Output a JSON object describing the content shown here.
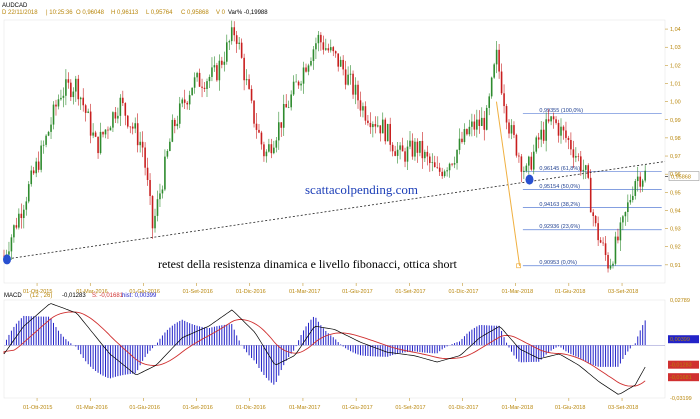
{
  "header": {
    "symbol": "AUDCAD",
    "quote_line": "D 22/11/2018 | 10:25:36 | O 0,96048 | H 0,96113 | L 0,95764 | C 0,95868 | V 0 | Var% -0,19988",
    "quote_parts": [
      {
        "text": "D 22/11/2018",
        "color": "#b8860b"
      },
      {
        "text": "| 10:25:36",
        "color": "#b8860b"
      },
      {
        "text": "O 0,96048",
        "color": "#b8860b"
      },
      {
        "text": "H 0,96113",
        "color": "#b8860b"
      },
      {
        "text": "L 0,95764",
        "color": "#b8860b"
      },
      {
        "text": "C 0,95868",
        "color": "#b8860b"
      },
      {
        "text": "V 0",
        "color": "#b8860b"
      },
      {
        "text": "Var% -0,19988",
        "color": "#000000"
      }
    ]
  },
  "watermark": "scattacolpending.com",
  "annotation": "retest della resistenza dinamica e livello fibonacci, ottica short",
  "colors": {
    "bull_candle": "#2e8b2e",
    "bear_candle": "#c81e1e",
    "trendline": "#222222",
    "fib_line": "#5b7fd6",
    "swing_line": "#f0b040",
    "axis_text": "#b8860b",
    "macd_line": "#000000",
    "signal_line": "#d03030",
    "histogram": "#2323c8",
    "marker": "#2850d0",
    "price_label_bg": "#ffffff"
  },
  "chart_data": [
    {
      "type": "candlestick",
      "title": "AUDCAD",
      "ylim": [
        0.9,
        1.045
      ],
      "y_ticks": [
        "1,04",
        "1,03",
        "1,02",
        "1,01",
        "1,00",
        "0,99",
        "0,98",
        "0,97",
        "0,96",
        "0,95",
        "0,94",
        "0,93",
        "0,92",
        "0,91"
      ],
      "y_tick_values": [
        1.04,
        1.03,
        1.02,
        1.01,
        1.0,
        0.99,
        0.98,
        0.97,
        0.96,
        0.95,
        0.94,
        0.93,
        0.92,
        0.91
      ],
      "x_ticks": [
        "01-Ott-2015",
        "01-Mar-2016",
        "01-Giu-2016",
        "01-Set-2016",
        "01-Dic-2016",
        "01-Mar-2017",
        "01-Giu-2017",
        "01-Set-2017",
        "01-Dic-2017",
        "01-Mar-2018",
        "01-Giu-2018",
        "03-Set-2018"
      ],
      "current_price_label": "0,95868",
      "last_close": 0.95868,
      "price_path": [
        {
          "t": 0.0,
          "p": 0.915
        },
        {
          "t": 0.03,
          "p": 0.945
        },
        {
          "t": 0.06,
          "p": 0.975
        },
        {
          "t": 0.085,
          "p": 1.005
        },
        {
          "t": 0.11,
          "p": 1.01
        },
        {
          "t": 0.14,
          "p": 0.975
        },
        {
          "t": 0.175,
          "p": 1.0
        },
        {
          "t": 0.21,
          "p": 0.975
        },
        {
          "t": 0.225,
          "p": 0.93
        },
        {
          "t": 0.255,
          "p": 0.985
        },
        {
          "t": 0.285,
          "p": 1.01
        },
        {
          "t": 0.32,
          "p": 1.015
        },
        {
          "t": 0.35,
          "p": 1.04
        },
        {
          "t": 0.375,
          "p": 0.995
        },
        {
          "t": 0.395,
          "p": 0.97
        },
        {
          "t": 0.42,
          "p": 0.99
        },
        {
          "t": 0.455,
          "p": 1.02
        },
        {
          "t": 0.475,
          "p": 1.035
        },
        {
          "t": 0.51,
          "p": 1.02
        },
        {
          "t": 0.545,
          "p": 0.995
        },
        {
          "t": 0.575,
          "p": 0.985
        },
        {
          "t": 0.6,
          "p": 0.97
        },
        {
          "t": 0.625,
          "p": 0.975
        },
        {
          "t": 0.655,
          "p": 0.96
        },
        {
          "t": 0.68,
          "p": 0.97
        },
        {
          "t": 0.705,
          "p": 0.985
        },
        {
          "t": 0.73,
          "p": 0.99
        },
        {
          "t": 0.745,
          "p": 1.025
        },
        {
          "t": 0.765,
          "p": 0.985
        },
        {
          "t": 0.79,
          "p": 0.96
        },
        {
          "t": 0.81,
          "p": 0.98
        },
        {
          "t": 0.83,
          "p": 0.99
        },
        {
          "t": 0.86,
          "p": 0.975
        },
        {
          "t": 0.88,
          "p": 0.96
        },
        {
          "t": 0.895,
          "p": 0.93
        },
        {
          "t": 0.915,
          "p": 0.91
        },
        {
          "t": 0.935,
          "p": 0.93
        },
        {
          "t": 0.955,
          "p": 0.958
        },
        {
          "t": 0.97,
          "p": 0.96
        }
      ],
      "trendline": {
        "from": {
          "t": 0.0,
          "p": 0.913
        },
        "to": {
          "t": 1.0,
          "p": 0.967
        }
      },
      "markers": [
        {
          "t": 0.0,
          "p": 0.913
        },
        {
          "t": 0.795,
          "p": 0.957
        }
      ],
      "swing_line": {
        "from": {
          "t": 0.745,
          "p": 1.0
        },
        "to": {
          "t": 0.78,
          "p": 0.9095
        }
      },
      "fibonacci": [
        {
          "label": "0,99355 (100,0%)",
          "value": 0.99355
        },
        {
          "label": "0,96145 (61,8%)",
          "value": 0.96145
        },
        {
          "label": "0,95154 (50,0%)",
          "value": 0.95154
        },
        {
          "label": "0,94163 (38,2%)",
          "value": 0.94163
        },
        {
          "label": "0,92936 (23,6%)",
          "value": 0.92936
        },
        {
          "label": "0,90953 (0,0%)",
          "value": 0.90953
        }
      ]
    },
    {
      "type": "macd",
      "title": "MACD",
      "params": "(12 , 26)",
      "legend": [
        {
          "label": "-0,01283",
          "color": "#000000"
        },
        {
          "label": "S: -0,01681",
          "color": "#d03030"
        },
        {
          "label": "hist: 0,00399",
          "color": "#2323c8"
        }
      ],
      "y_ticks": [
        "0,02789",
        "0,00399",
        "-0,01283",
        "-0,01681",
        "-0,03199"
      ],
      "y_tick_values": [
        0.02789,
        0.00399,
        -0.01283,
        -0.01681,
        -0.03199
      ],
      "ylim": [
        -0.032,
        0.028
      ],
      "x_ticks": [
        "01-Ott-2015",
        "01-Mar-2016",
        "01-Giu-2016",
        "01-Set-2016",
        "01-Dic-2016",
        "01-Mar-2017",
        "01-Giu-2017",
        "01-Set-2017",
        "01-Dic-2017",
        "01-Mar-2018",
        "01-Giu-2018",
        "03-Set-2018"
      ],
      "macd_path": [
        {
          "t": 0.0,
          "v": -0.005
        },
        {
          "t": 0.03,
          "v": 0.012
        },
        {
          "t": 0.07,
          "v": 0.026
        },
        {
          "t": 0.11,
          "v": 0.02
        },
        {
          "t": 0.16,
          "v": -0.005
        },
        {
          "t": 0.2,
          "v": -0.018
        },
        {
          "t": 0.23,
          "v": -0.012
        },
        {
          "t": 0.27,
          "v": 0.005
        },
        {
          "t": 0.31,
          "v": 0.012
        },
        {
          "t": 0.345,
          "v": 0.022
        },
        {
          "t": 0.38,
          "v": 0.008
        },
        {
          "t": 0.41,
          "v": -0.012
        },
        {
          "t": 0.44,
          "v": -0.006
        },
        {
          "t": 0.47,
          "v": 0.012
        },
        {
          "t": 0.5,
          "v": 0.01
        },
        {
          "t": 0.54,
          "v": 0.002
        },
        {
          "t": 0.58,
          "v": -0.004
        },
        {
          "t": 0.62,
          "v": -0.006
        },
        {
          "t": 0.655,
          "v": -0.01
        },
        {
          "t": 0.69,
          "v": -0.006
        },
        {
          "t": 0.72,
          "v": 0.005
        },
        {
          "t": 0.75,
          "v": 0.012
        },
        {
          "t": 0.78,
          "v": -0.002
        },
        {
          "t": 0.81,
          "v": -0.008
        },
        {
          "t": 0.84,
          "v": -0.005
        },
        {
          "t": 0.87,
          "v": -0.012
        },
        {
          "t": 0.9,
          "v": -0.022
        },
        {
          "t": 0.93,
          "v": -0.03
        },
        {
          "t": 0.955,
          "v": -0.024
        },
        {
          "t": 0.97,
          "v": -0.013
        }
      ]
    }
  ]
}
